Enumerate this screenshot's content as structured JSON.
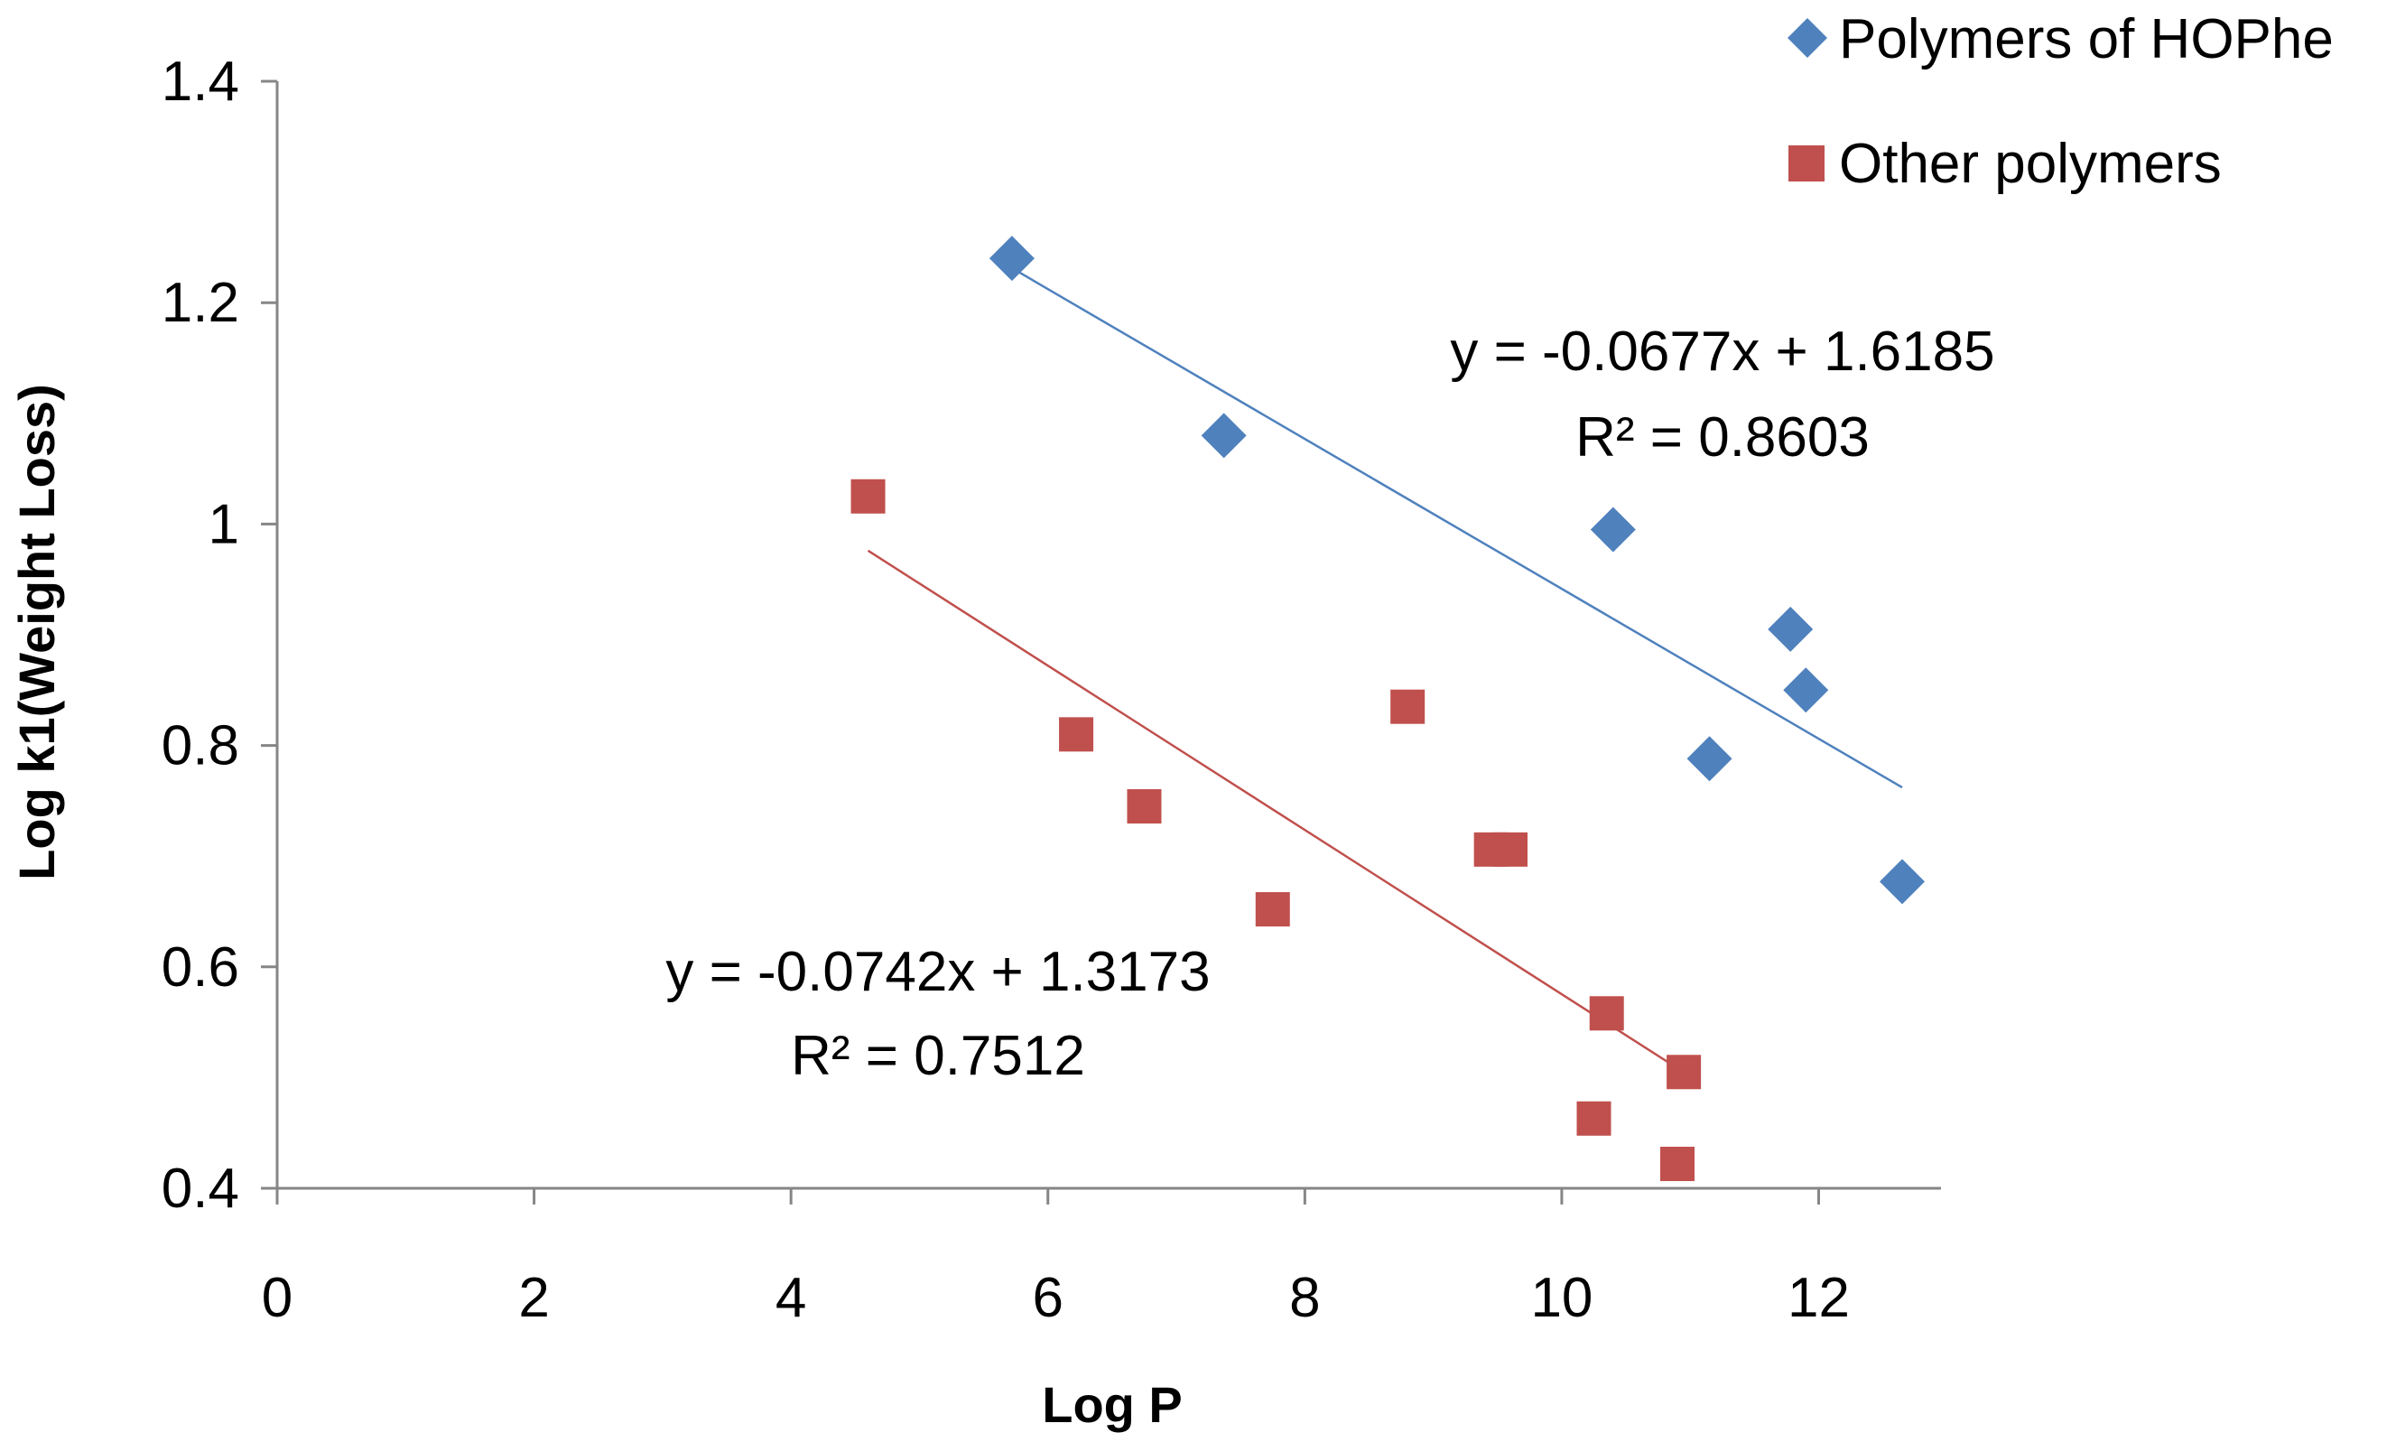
{
  "chart_data": {
    "type": "scatter",
    "xlabel": "Log P",
    "ylabel": "Log k1(Weight Loss)",
    "xlim": [
      0,
      13
    ],
    "ylim": [
      0.4,
      1.4
    ],
    "xticks": [
      "0",
      "2",
      "4",
      "6",
      "8",
      "10",
      "12"
    ],
    "yticks": [
      "0.4",
      "0.6",
      "0.8",
      "1",
      "1.2",
      "1.4"
    ],
    "grid": false,
    "legend_position": "top-right",
    "series": [
      {
        "name": "Polymers of HOPhe",
        "marker": "diamond",
        "color": "#4F81BD",
        "x": [
          5.72,
          7.37,
          10.4,
          11.78,
          11.9,
          11.15,
          12.65
        ],
        "y": [
          1.24,
          1.08,
          0.995,
          0.905,
          0.85,
          0.788,
          0.677
        ],
        "trendline": {
          "x_range": [
            5.72,
            12.65
          ],
          "slope": -0.0677,
          "intercept": 1.6185,
          "equation": "y = -0.0677x + 1.6185",
          "r_squared": "R² = 0.8603"
        }
      },
      {
        "name": "Other polymers",
        "marker": "square",
        "color": "#C0504D",
        "x": [
          4.6,
          6.22,
          6.75,
          7.75,
          8.8,
          9.45,
          9.6,
          10.35,
          10.25,
          10.95,
          10.9
        ],
        "y": [
          1.025,
          0.81,
          0.745,
          0.652,
          0.835,
          0.706,
          0.706,
          0.558,
          0.463,
          0.505,
          0.422
        ],
        "trendline": {
          "x_range": [
            4.6,
            10.95
          ],
          "slope": -0.0742,
          "intercept": 1.3173,
          "equation": "y = -0.0742x + 1.3173",
          "r_squared": "R² = 0.7512"
        }
      }
    ]
  }
}
